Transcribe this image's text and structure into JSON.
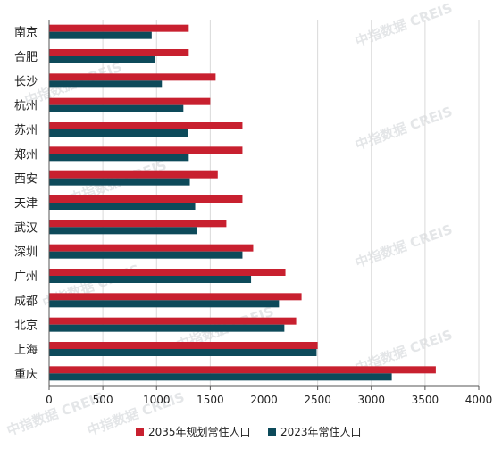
{
  "chart_data": {
    "type": "bar",
    "orientation": "horizontal",
    "categories": [
      "南京",
      "合肥",
      "长沙",
      "杭州",
      "苏州",
      "郑州",
      "西安",
      "天津",
      "武汉",
      "深圳",
      "广州",
      "成都",
      "北京",
      "上海",
      "重庆"
    ],
    "series": [
      {
        "name": "2035年规划常住人口",
        "color": "#c8202f",
        "values": [
          1300,
          1300,
          1550,
          1500,
          1800,
          1800,
          1570,
          1800,
          1650,
          1900,
          2200,
          2350,
          2300,
          2500,
          3600
        ]
      },
      {
        "name": "2023年常住人口",
        "color": "#0d4a5a",
        "values": [
          955,
          985,
          1050,
          1250,
          1295,
          1300,
          1310,
          1360,
          1380,
          1800,
          1880,
          2140,
          2190,
          2490,
          3190
        ]
      }
    ],
    "xlim": [
      0,
      4000
    ],
    "xticks": [
      0,
      500,
      1000,
      1500,
      2000,
      2500,
      3000,
      3500,
      4000
    ],
    "grid": "vertical",
    "legend": "bottom",
    "title": "",
    "xlabel": "",
    "ylabel": ""
  },
  "watermark": "中指数据 CREIS"
}
